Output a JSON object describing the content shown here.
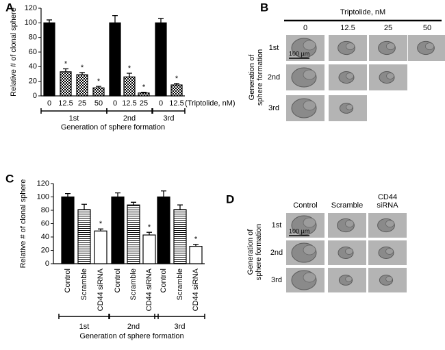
{
  "chart_data": [
    {
      "type": "bar",
      "panel_label": "A",
      "y_label": "Relative # of clonal sphere",
      "categories": [
        "0",
        "12.5",
        "25",
        "50",
        "0",
        "12.5",
        "25",
        "0",
        "12.5"
      ],
      "category_note": "(Triptolide, nM)",
      "values": [
        100,
        33,
        29,
        11,
        100,
        26,
        4,
        100,
        15
      ],
      "errors": [
        4,
        4,
        3,
        2,
        10,
        5,
        1,
        6,
        2
      ],
      "annotations": [
        null,
        "*",
        "*",
        "*",
        null,
        "*",
        "*",
        null,
        "*"
      ],
      "fills": [
        "solid",
        "checker",
        "checker",
        "checker",
        "solid",
        "checker",
        "checker",
        "solid",
        "checker"
      ],
      "color": "#000000",
      "groups": [
        {
          "label": "1st",
          "count": 4
        },
        {
          "label": "2nd",
          "count": 3
        },
        {
          "label": "3rd",
          "count": 2
        }
      ],
      "x_label": "Generation of sphere formation",
      "ylim": [
        0,
        120
      ],
      "yticks": [
        0,
        20,
        40,
        60,
        80,
        100,
        120
      ]
    },
    {
      "type": "bar",
      "panel_label": "C",
      "y_label": "Relative # of clonal sphere",
      "categories": [
        "Control",
        "Scramble",
        "CD44 siRNA",
        "Control",
        "Scramble",
        "CD44 siRNA",
        "Control",
        "Scramble",
        "CD44 siRNA"
      ],
      "values": [
        100,
        81,
        49,
        100,
        88,
        43,
        100,
        81,
        26
      ],
      "errors": [
        5,
        8,
        3,
        6,
        4,
        4,
        9,
        7,
        3
      ],
      "annotations": [
        null,
        null,
        "*",
        null,
        null,
        "*",
        null,
        null,
        "*"
      ],
      "fills": [
        "solid",
        "stripes",
        "white",
        "solid",
        "stripes",
        "white",
        "solid",
        "stripes",
        "white"
      ],
      "color": "#000000",
      "groups": [
        {
          "label": "1st",
          "count": 3
        },
        {
          "label": "2nd",
          "count": 3
        },
        {
          "label": "3rd",
          "count": 3
        }
      ],
      "x_label": "Generation of sphere formation",
      "ylim": [
        0,
        120
      ],
      "yticks": [
        0,
        20,
        40,
        60,
        80,
        100,
        120
      ]
    }
  ],
  "panels": [
    {
      "label": "B",
      "title": "Triptolide, nM",
      "y_label": [
        "Generation of",
        "sphere formation"
      ],
      "columns": [
        [
          "0"
        ],
        [
          "12.5"
        ],
        [
          "25"
        ],
        [
          "50"
        ]
      ],
      "rows": [
        "1st",
        "2nd",
        "3rd"
      ],
      "images_per_row": [
        4,
        3,
        2
      ],
      "scale_bar": "100 µm"
    },
    {
      "label": "D",
      "y_label": [
        "Generation of",
        "sphere formation"
      ],
      "columns": [
        [
          "Control"
        ],
        [
          "Scramble"
        ],
        [
          "CD44",
          "siRNA"
        ]
      ],
      "rows": [
        "1st",
        "2nd",
        "3rd"
      ],
      "images_per_row": [
        3,
        3,
        3
      ],
      "scale_bar": "100 µm"
    }
  ]
}
